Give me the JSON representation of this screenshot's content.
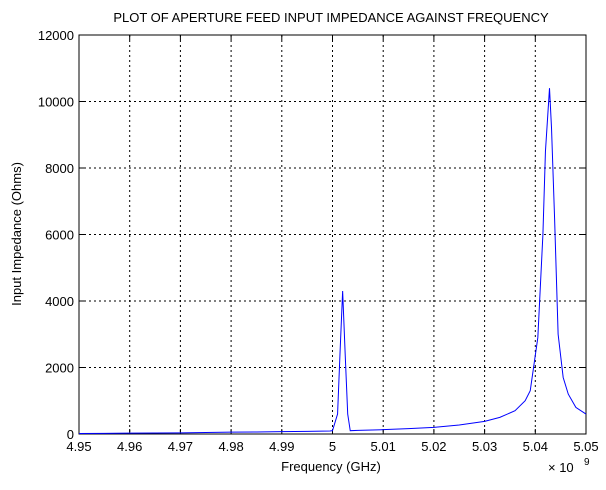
{
  "chart_data": {
    "type": "line",
    "title": "PLOT OF APERTURE FEED INPUT IMPEDANCE AGAINST FREQUENCY",
    "xlabel": "Frequency (GHz)",
    "ylabel": "Input Impedance (Ohms)",
    "x_exponent_label": "× 10",
    "x_exponent": "9",
    "xlim": [
      4.95,
      5.05
    ],
    "ylim": [
      0,
      12000
    ],
    "grid": true,
    "line_color": "#0000ff",
    "xticks": [
      "4.95",
      "4.96",
      "4.97",
      "4.98",
      "4.99",
      "5",
      "5.01",
      "5.02",
      "5.03",
      "5.04",
      "5.05"
    ],
    "yticks": [
      "0",
      "2000",
      "4000",
      "6000",
      "8000",
      "10000",
      "12000"
    ],
    "series": [
      {
        "x": [
          4.95,
          4.955,
          4.96,
          4.965,
          4.97,
          4.975,
          4.98,
          4.985,
          4.99,
          4.995,
          4.9995,
          5.0,
          5.001,
          5.0015,
          5.002,
          5.0025,
          5.003,
          5.0035,
          5.005,
          5.01,
          5.015,
          5.02,
          5.025,
          5.03,
          5.033,
          5.036,
          5.038,
          5.039,
          5.0405,
          5.0415,
          5.042,
          5.0428,
          5.0432,
          5.0438,
          5.0445,
          5.0455,
          5.0465,
          5.048,
          5.05
        ],
        "values": [
          15,
          20,
          25,
          30,
          35,
          45,
          55,
          60,
          70,
          80,
          90,
          100,
          600,
          2500,
          4300,
          2400,
          600,
          100,
          110,
          130,
          160,
          200,
          270,
          380,
          500,
          700,
          1000,
          1300,
          2900,
          6000,
          8500,
          10400,
          9200,
          6500,
          3000,
          1700,
          1200,
          800,
          600
        ]
      }
    ]
  }
}
